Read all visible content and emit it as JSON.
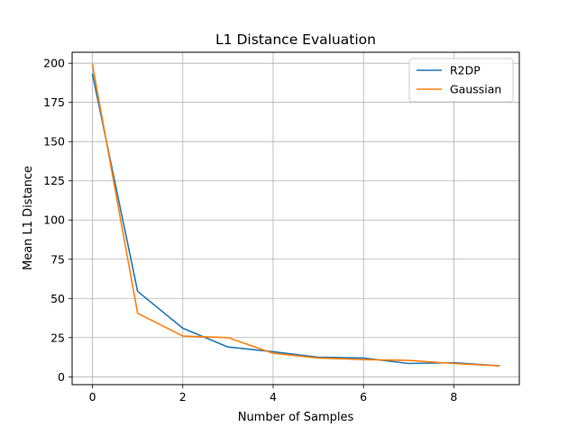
{
  "chart_data": {
    "type": "line",
    "title": "L1 Distance Evaluation",
    "xlabel": "Number of Samples",
    "ylabel": "Mean L1 Distance",
    "x": [
      0,
      1,
      2,
      3,
      4,
      5,
      6,
      7,
      8,
      9
    ],
    "xlim": [
      -0.45,
      9.45
    ],
    "ylim": [
      -5,
      207
    ],
    "xticks": [
      0,
      2,
      4,
      6,
      8
    ],
    "yticks": [
      0,
      25,
      50,
      75,
      100,
      125,
      150,
      175,
      200
    ],
    "grid": true,
    "legend_position": "top-right",
    "series": [
      {
        "name": "R2DP",
        "color": "#1f77b4",
        "values": [
          193,
          54.5,
          31,
          19,
          16,
          12.5,
          12,
          8.5,
          9,
          7
        ]
      },
      {
        "name": "Gaussian",
        "color": "#ff7f0e",
        "values": [
          199,
          40.5,
          26,
          25,
          15,
          12,
          11,
          10.5,
          8.5,
          7
        ]
      }
    ]
  }
}
